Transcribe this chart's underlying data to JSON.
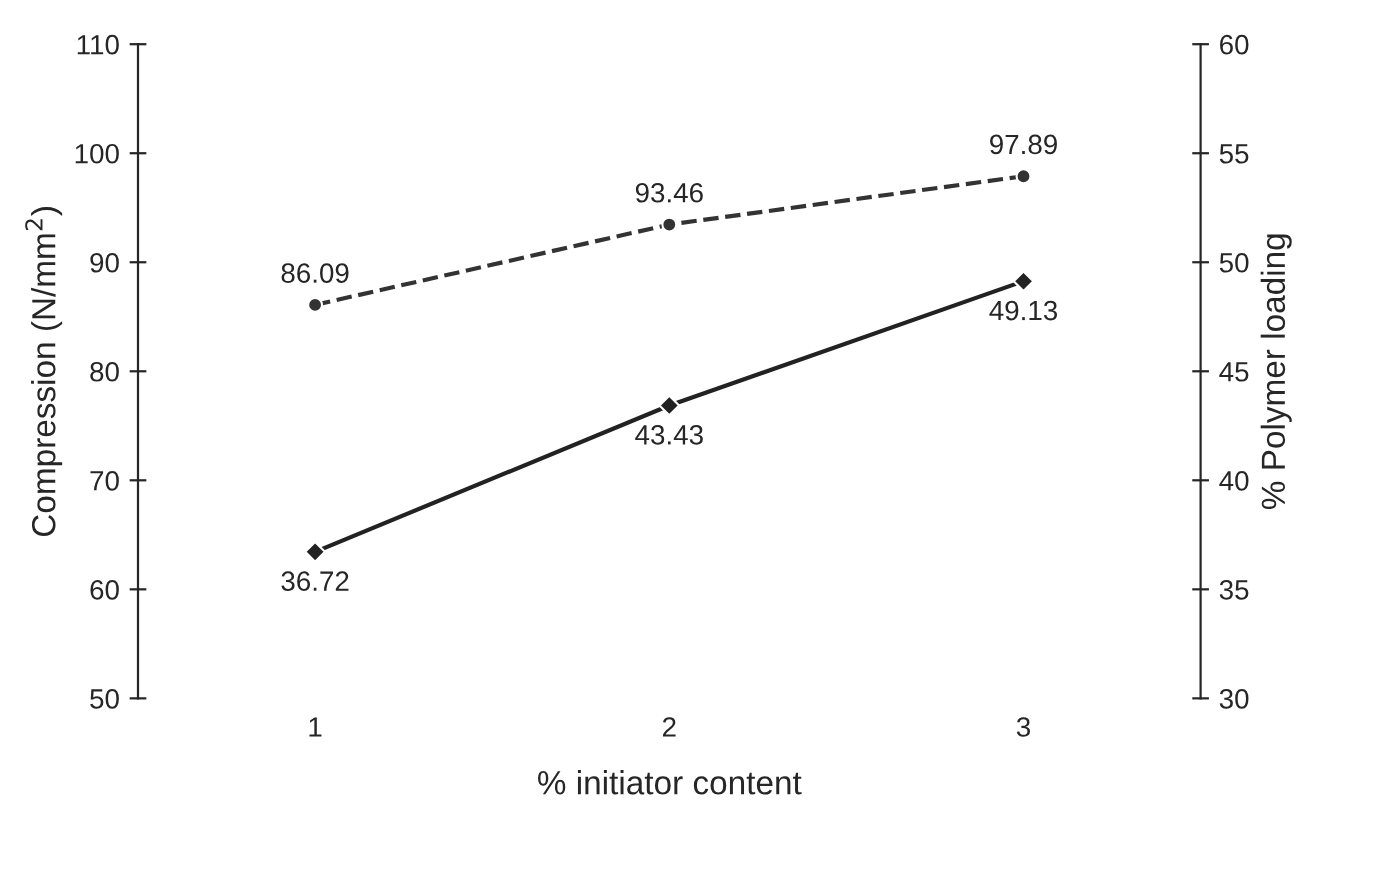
{
  "chart_data": {
    "type": "line",
    "xlabel": "% initiator content",
    "ylabel": "Compression (N/mm$^{2}$)",
    "y2label": "% Polymer loading",
    "categories": [
      "1",
      "2",
      "3"
    ],
    "series": [
      {
        "color": "#333333",
        "values": [
          86.09,
          93.46,
          97.89
        ],
        "line_style": "dashed",
        "marker": "circle"
      },
      {
        "color": "#222222",
        "values": [
          36.72,
          43.43,
          49.13
        ],
        "line_style": "solid",
        "marker": "diamond",
        "axis": "y2"
      }
    ],
    "ylim": [
      50,
      110
    ],
    "yticks": [
      50,
      60,
      70,
      80,
      90,
      100,
      110
    ],
    "y2lim": [
      30,
      60
    ],
    "y2ticks": [
      30,
      35,
      40,
      45,
      50,
      55,
      60
    ],
    "data_labels": true,
    "grid": false,
    "legend": false
  }
}
